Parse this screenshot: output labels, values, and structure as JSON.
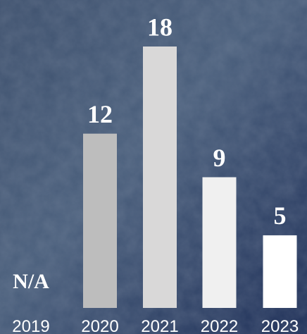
{
  "chart_data": {
    "type": "bar",
    "categories": [
      "2019",
      "2020",
      "2021",
      "2022",
      "2023"
    ],
    "values": [
      null,
      12,
      18,
      9,
      5
    ],
    "value_labels": [
      "N/A",
      "12",
      "18",
      "9",
      "5"
    ],
    "colors": [
      "#ffffff",
      "#bdbdbd",
      "#d9d8d8",
      "#f0f0f0",
      "#ffffff"
    ]
  }
}
